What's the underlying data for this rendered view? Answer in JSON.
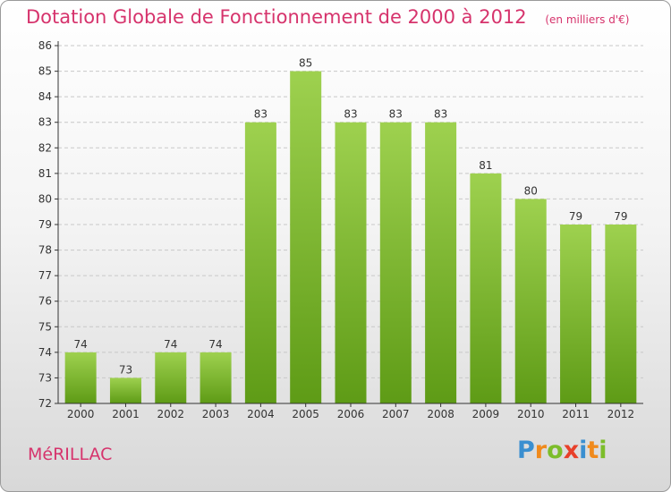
{
  "header": {
    "title": "Dotation Globale de Fonctionnement de 2000 à 2012",
    "unit": "(en milliers d'€)"
  },
  "footer": {
    "commune": "MéRILLAC",
    "logo_letters": [
      "P",
      "r",
      "o",
      "x",
      "i",
      "t",
      "i"
    ],
    "logo_colors": [
      "#3a8fd0",
      "#f08a1c",
      "#7cbd2a",
      "#e8402a",
      "#3a8fd0",
      "#f08a1c",
      "#7cbd2a"
    ]
  },
  "colors": {
    "title": "#d6336c",
    "bar_top": "#9ed14f",
    "bar_bottom": "#5e9b16",
    "axis": "#333333",
    "grid": "#c8c8c8"
  },
  "chart_data": {
    "type": "bar",
    "categories": [
      "2000",
      "2001",
      "2002",
      "2003",
      "2004",
      "2005",
      "2006",
      "2007",
      "2008",
      "2009",
      "2010",
      "2011",
      "2012"
    ],
    "values": [
      74,
      73,
      74,
      74,
      83,
      85,
      83,
      83,
      83,
      81,
      80,
      79,
      79
    ],
    "title": "Dotation Globale de Fonctionnement de 2000 à 2012",
    "ylim": [
      72,
      86
    ],
    "yticks": [
      72,
      73,
      74,
      75,
      76,
      77,
      78,
      79,
      80,
      81,
      82,
      83,
      84,
      85,
      86
    ],
    "grid": true,
    "data_labels": true
  }
}
